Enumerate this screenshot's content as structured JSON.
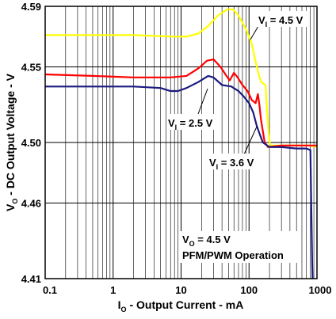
{
  "chart_data": {
    "type": "line",
    "xlabel": {
      "main": "I",
      "sub": "O",
      "rest": " - Output Current - mA"
    },
    "ylabel": {
      "main": "V",
      "sub": "O",
      "rest": " - DC Output Voltage - V"
    },
    "x_scale": "log",
    "xlim": [
      0.1,
      1000
    ],
    "ylim": [
      4.41,
      4.59
    ],
    "x_ticks": [
      "0.1",
      "1",
      "10",
      "100",
      "1000"
    ],
    "y_ticks": [
      "4.41",
      "4.46",
      "4.50",
      "4.55",
      "4.59"
    ],
    "grid": true,
    "series": [
      {
        "label_main": "V",
        "label_sub": "I",
        "label_rest": " = 4.5 V",
        "color": "#ffff00",
        "points": [
          [
            0.1,
            4.571
          ],
          [
            0.5,
            4.571
          ],
          [
            2,
            4.571
          ],
          [
            8,
            4.57
          ],
          [
            12,
            4.57
          ],
          [
            18,
            4.572
          ],
          [
            25,
            4.577
          ],
          [
            35,
            4.584
          ],
          [
            48,
            4.588
          ],
          [
            58,
            4.588
          ],
          [
            70,
            4.584
          ],
          [
            90,
            4.575
          ],
          [
            110,
            4.565
          ],
          [
            130,
            4.55
          ],
          [
            150,
            4.54
          ],
          [
            175,
            4.538
          ],
          [
            185,
            4.52
          ],
          [
            195,
            4.505
          ],
          [
            205,
            4.498
          ],
          [
            300,
            4.498
          ],
          [
            500,
            4.498
          ],
          [
            800,
            4.498
          ],
          [
            1000,
            4.497
          ]
        ]
      },
      {
        "label_main": "V",
        "label_sub": "I",
        "label_rest": " = 2.5 V",
        "color": "#ff0000",
        "points": [
          [
            0.1,
            4.545
          ],
          [
            0.5,
            4.544
          ],
          [
            2,
            4.543
          ],
          [
            7,
            4.543
          ],
          [
            12,
            4.544
          ],
          [
            18,
            4.549
          ],
          [
            24,
            4.554
          ],
          [
            30,
            4.555
          ],
          [
            38,
            4.55
          ],
          [
            45,
            4.545
          ],
          [
            52,
            4.541
          ],
          [
            60,
            4.546
          ],
          [
            68,
            4.543
          ],
          [
            80,
            4.538
          ],
          [
            95,
            4.534
          ],
          [
            110,
            4.528
          ],
          [
            125,
            4.526
          ],
          [
            135,
            4.532
          ],
          [
            142,
            4.525
          ],
          [
            150,
            4.515
          ],
          [
            170,
            4.5
          ],
          [
            190,
            4.497
          ],
          [
            300,
            4.498
          ],
          [
            1000,
            4.498
          ]
        ]
      },
      {
        "label_main": "V",
        "label_sub": "I",
        "label_rest": " = 3.6 V",
        "color": "#1a1a80",
        "points": [
          [
            0.1,
            4.537
          ],
          [
            0.5,
            4.537
          ],
          [
            2,
            4.537
          ],
          [
            5,
            4.536
          ],
          [
            7,
            4.534
          ],
          [
            9,
            4.534
          ],
          [
            12,
            4.536
          ],
          [
            18,
            4.54
          ],
          [
            25,
            4.544
          ],
          [
            30,
            4.543
          ],
          [
            40,
            4.538
          ],
          [
            55,
            4.537
          ],
          [
            70,
            4.534
          ],
          [
            85,
            4.53
          ],
          [
            100,
            4.526
          ],
          [
            115,
            4.52
          ],
          [
            130,
            4.511
          ],
          [
            145,
            4.505
          ],
          [
            160,
            4.5
          ],
          [
            200,
            4.497
          ],
          [
            300,
            4.497
          ],
          [
            500,
            4.496
          ],
          [
            700,
            4.496
          ],
          [
            800,
            4.495
          ],
          [
            810,
            4.48
          ],
          [
            830,
            4.45
          ],
          [
            850,
            4.42
          ],
          [
            860,
            4.41
          ]
        ]
      }
    ],
    "annotation": {
      "line1_main": "V",
      "line1_sub": "O",
      "line1_rest": " = 4.5 V",
      "line2": "PFM/PWM Operation"
    }
  }
}
